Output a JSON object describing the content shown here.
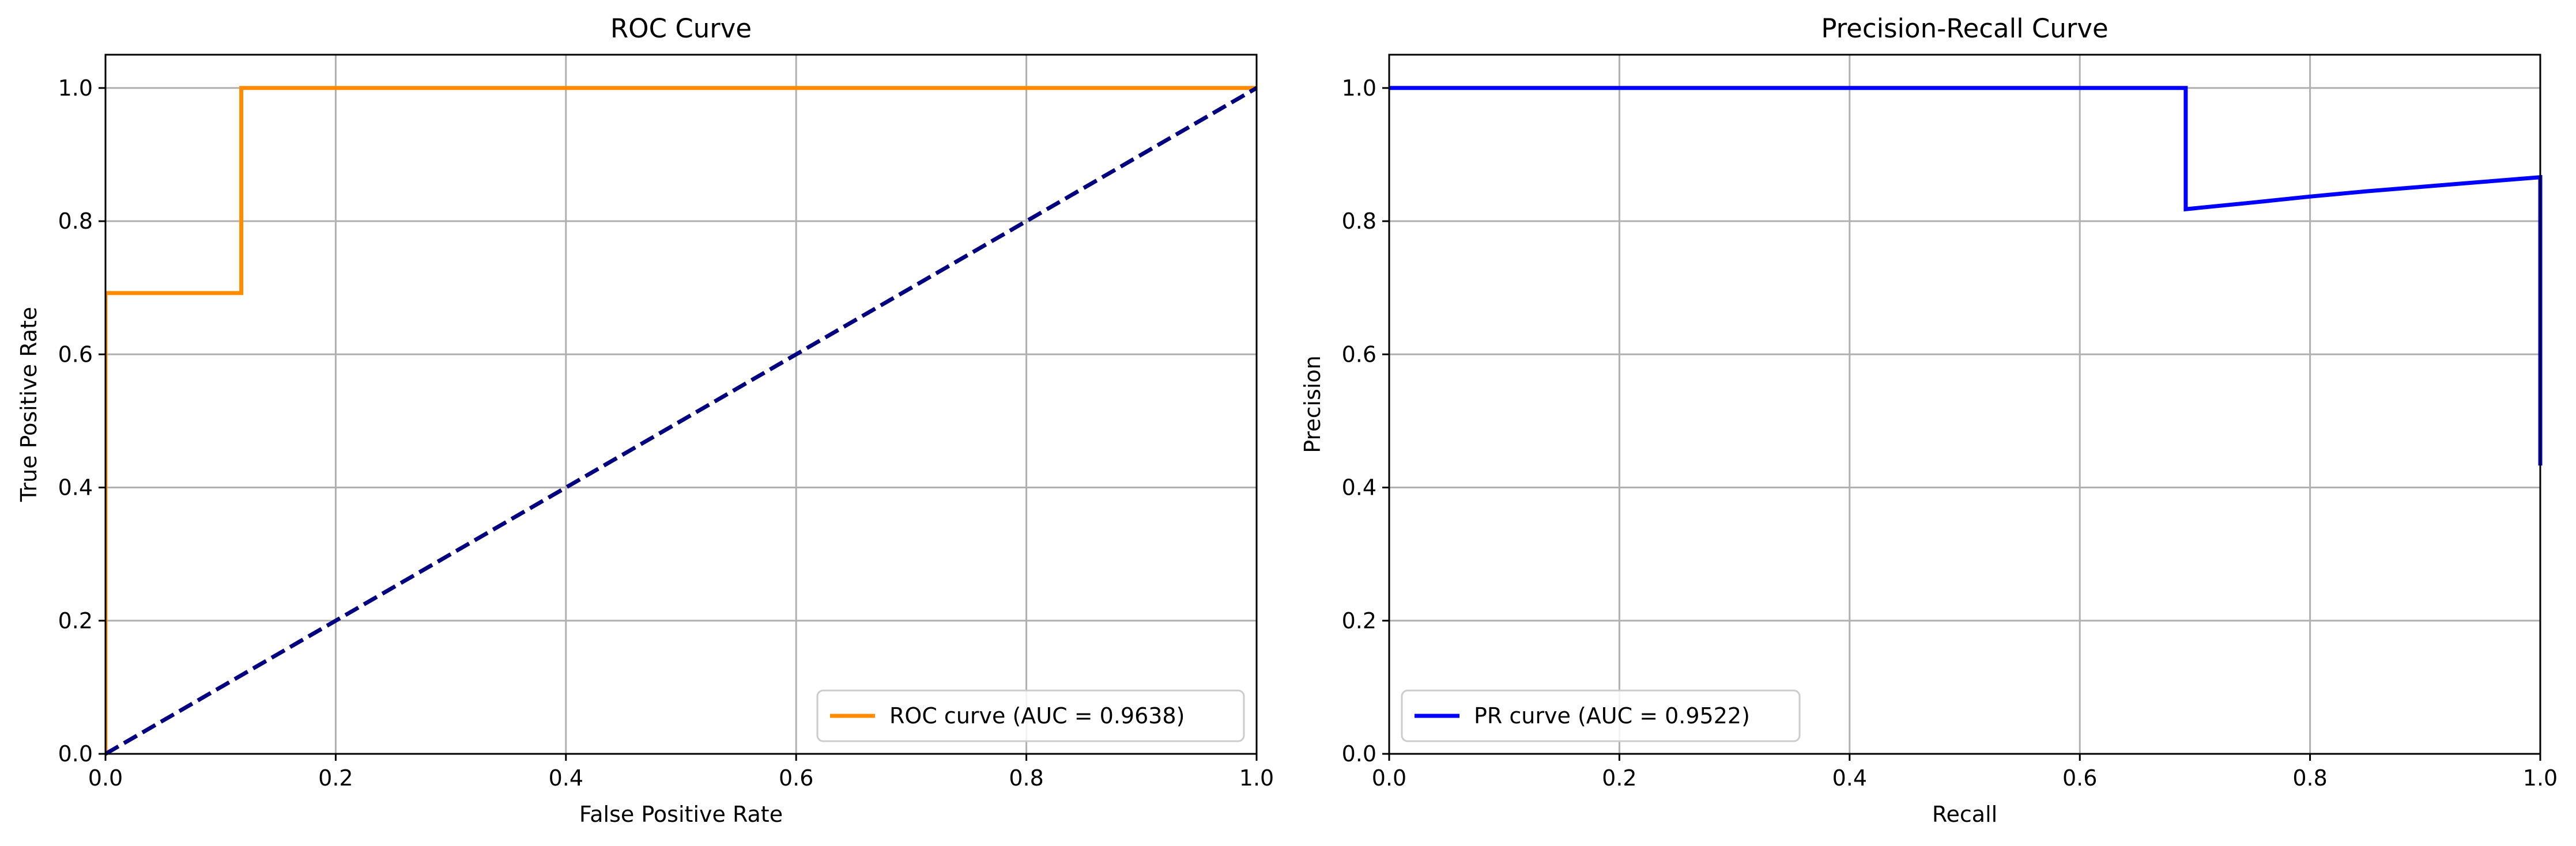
{
  "chart_data": [
    {
      "type": "line",
      "title": "ROC Curve",
      "xlabel": "False Positive Rate",
      "ylabel": "True Positive Rate",
      "xlim": [
        0,
        1
      ],
      "ylim": [
        0,
        1.05
      ],
      "xticks": [
        "0.0",
        "0.2",
        "0.4",
        "0.6",
        "0.8",
        "1.0"
      ],
      "yticks": [
        "0.0",
        "0.2",
        "0.4",
        "0.6",
        "0.8",
        "1.0"
      ],
      "grid": true,
      "legend_position": "lower-right",
      "series": [
        {
          "name": "ROC curve (AUC = 0.9638)",
          "color": "#ff8c00",
          "style": "solid",
          "x": [
            0,
            0,
            0.118,
            0.118,
            1.0
          ],
          "y": [
            0,
            0.692,
            0.692,
            1.0,
            1.0
          ]
        },
        {
          "color": "#000080",
          "style": "dashed",
          "x": [
            0,
            1
          ],
          "y": [
            0,
            1
          ]
        }
      ]
    },
    {
      "type": "line",
      "title": "Precision-Recall Curve",
      "xlabel": "Recall",
      "ylabel": "Precision",
      "xlim": [
        0,
        1
      ],
      "ylim": [
        0,
        1.05
      ],
      "xticks": [
        "0.0",
        "0.2",
        "0.4",
        "0.6",
        "0.8",
        "1.0"
      ],
      "yticks": [
        "0.0",
        "0.2",
        "0.4",
        "0.6",
        "0.8",
        "1.0"
      ],
      "grid": true,
      "legend_position": "lower-left",
      "series": [
        {
          "name": "PR curve (AUC = 0.9522)",
          "color": "#0000ff",
          "style": "solid",
          "x": [
            0,
            0.692,
            0.692,
            0.75,
            0.8,
            0.85,
            0.9,
            0.95,
            1.0,
            1.0
          ],
          "y": [
            1.0,
            1.0,
            0.818,
            0.828,
            0.837,
            0.845,
            0.852,
            0.859,
            0.866,
            0.433
          ]
        }
      ]
    }
  ]
}
